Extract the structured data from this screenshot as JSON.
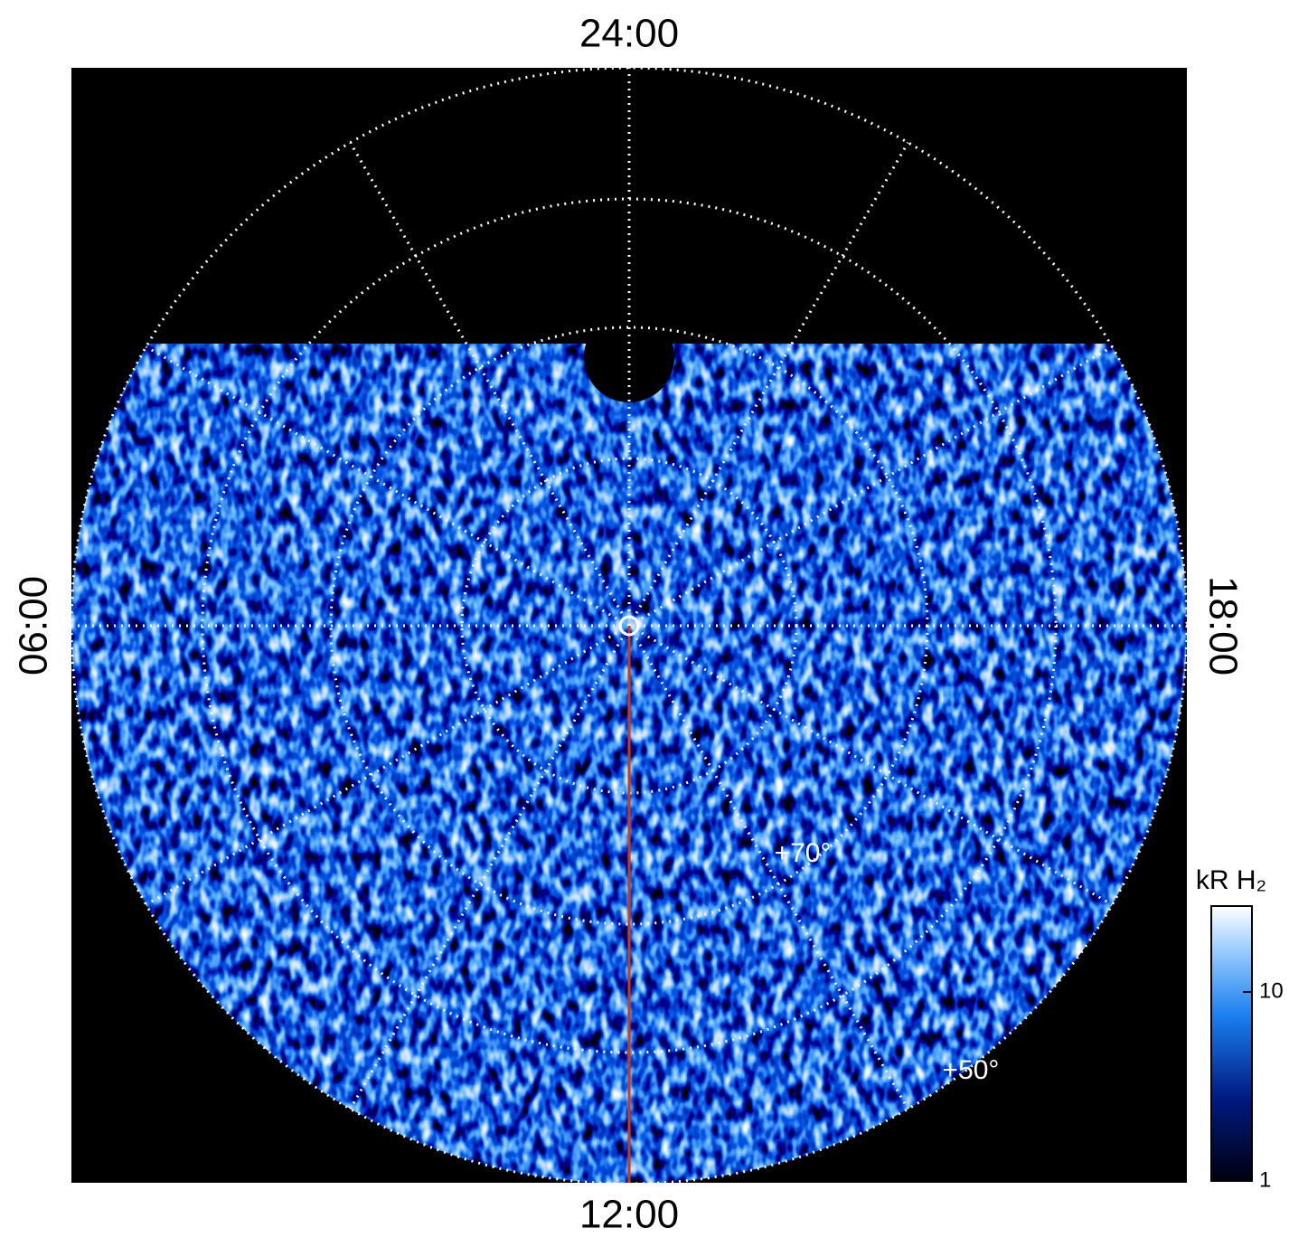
{
  "title_top": "24:00",
  "title_bottom": "12:00",
  "title_left": "06:00",
  "title_right": "18:00",
  "lat_labels": [
    "+70°",
    "+50°"
  ],
  "colorbar": {
    "label": "kR H₂",
    "scale": "log",
    "lim": [
      1,
      28.5
    ],
    "ticks": [
      1,
      10
    ]
  }
}
